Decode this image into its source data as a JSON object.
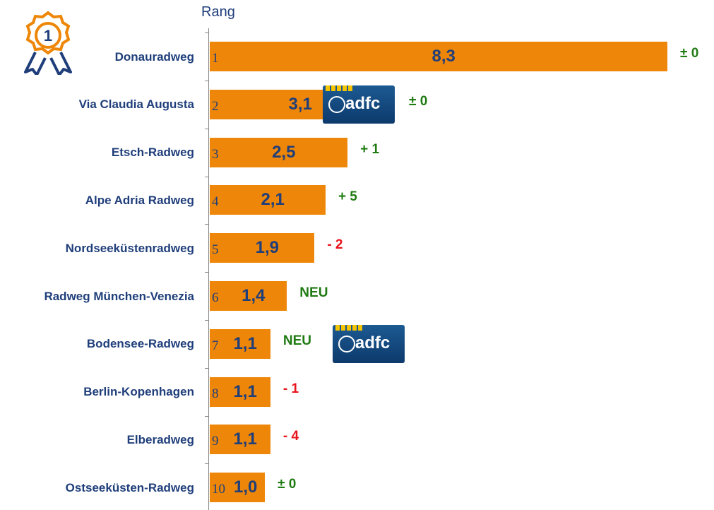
{
  "chart_data": {
    "type": "bar",
    "orientation": "horizontal",
    "axis_title": "Rang",
    "categories": [
      "Donauradweg",
      "Via Claudia Augusta",
      "Etsch-Radweg",
      "Alpe Adria Radweg",
      "Nordseeküstenradweg",
      "Radweg München-Venezia",
      "Bodensee-Radweg",
      "Berlin-Kopenhagen",
      "Elberadweg",
      "Ostseeküsten-Radweg"
    ],
    "ranks": [
      1,
      2,
      3,
      4,
      5,
      6,
      7,
      8,
      9,
      10
    ],
    "values": [
      8.3,
      3.1,
      2.5,
      2.1,
      1.9,
      1.4,
      1.1,
      1.1,
      1.1,
      1.0
    ],
    "value_labels": [
      "8,3",
      "3,1",
      "2,5",
      "2,1",
      "1,9",
      "1,4",
      "1,1",
      "1,1",
      "1,1",
      "1,0"
    ],
    "color": "#ee8709",
    "changes": [
      {
        "label": "± 0",
        "color": "#1f7a12"
      },
      {
        "label": "± 0",
        "color": "#1f7a12"
      },
      {
        "label": "+ 1",
        "color": "#1f7a12"
      },
      {
        "label": "+ 5",
        "color": "#1f7a12"
      },
      {
        "label": "- 2",
        "color": "#e8141c"
      },
      {
        "label": "NEU",
        "color": "#1f7a12"
      },
      {
        "label": "NEU",
        "color": "#1f7a12"
      },
      {
        "label": "- 1",
        "color": "#e8141c"
      },
      {
        "label": "- 4",
        "color": "#e8141c"
      },
      {
        "label": "± 0",
        "color": "#1f7a12"
      }
    ],
    "medal": "1",
    "badge": {
      "text": "adfc",
      "rows": [
        1,
        6
      ]
    }
  }
}
